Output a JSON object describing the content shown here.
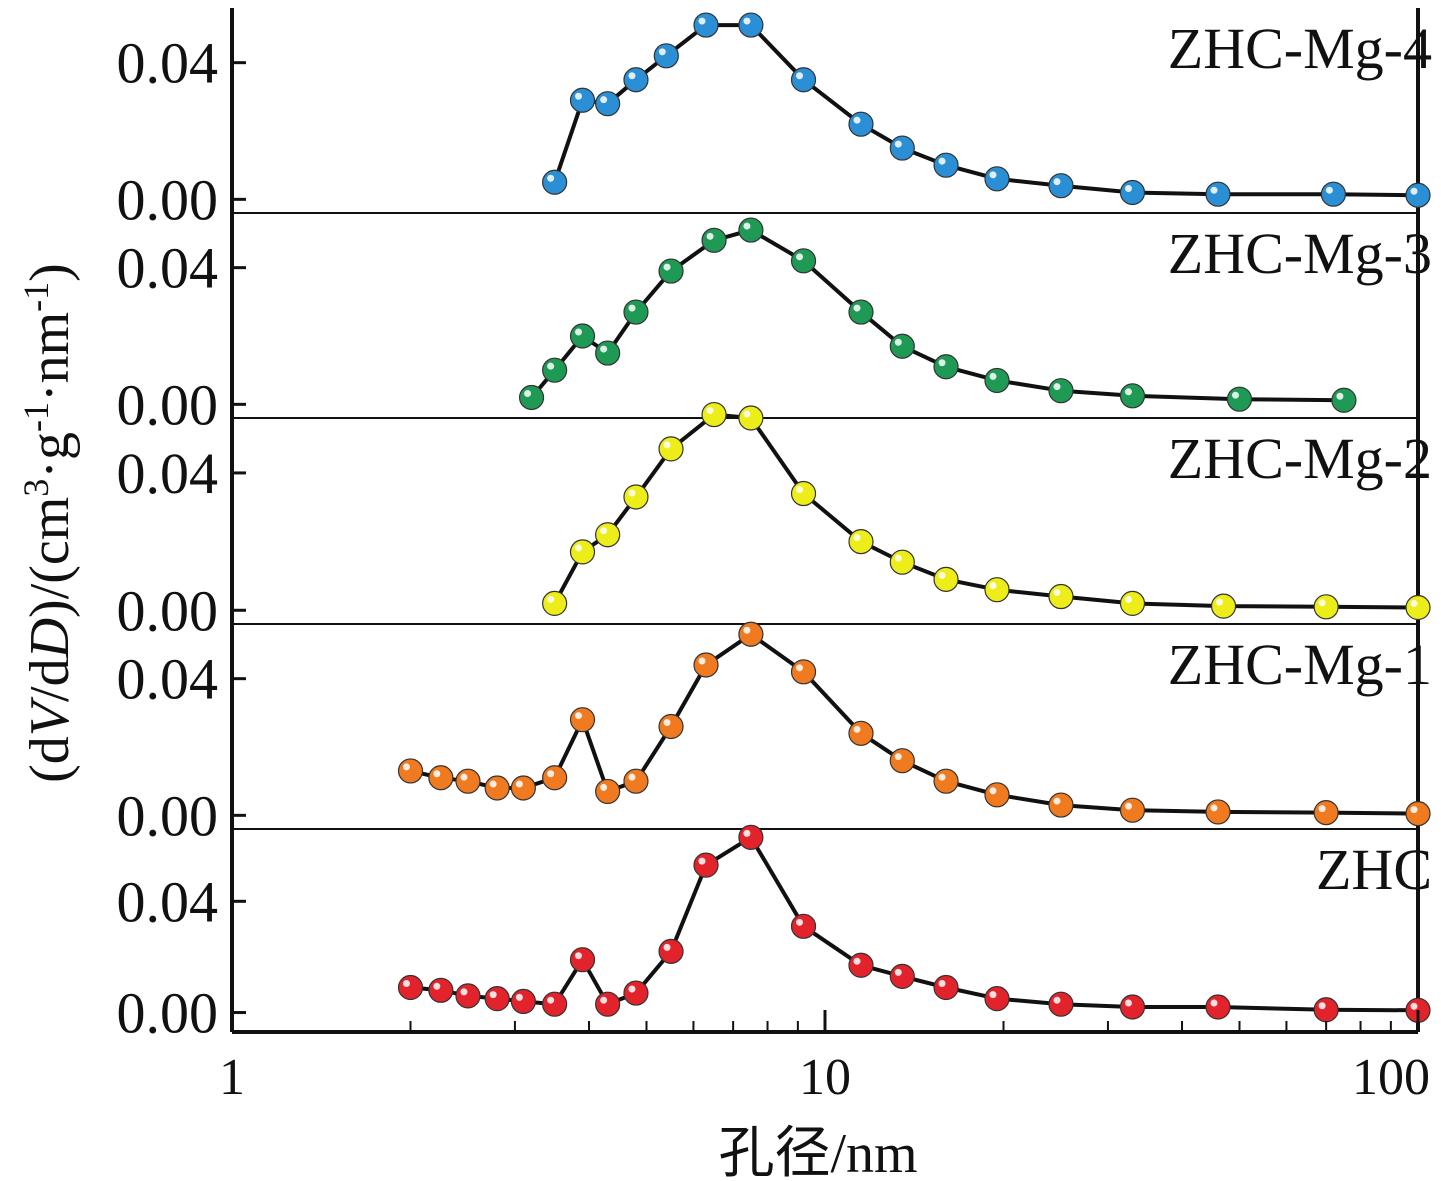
{
  "chart_data": {
    "type": "line",
    "xlabel": "孔径/nm",
    "ylabel_parts": [
      "(d",
      "V",
      "/d",
      "D",
      ")/(cm",
      "3",
      "·g",
      "-1",
      "·nm",
      "-1",
      ")"
    ],
    "x_scale": "log",
    "xlim": [
      1,
      100
    ],
    "x_ticks": [
      "1",
      "10",
      "100"
    ],
    "y_tick_labels": [
      "0.00",
      "0.04"
    ],
    "panel_ylim": [
      -0.004,
      0.056
    ],
    "bottom_panel_ylim": [
      -0.007,
      0.066
    ],
    "series": [
      {
        "name": "ZHC-Mg-4",
        "color": "#2b8fd6",
        "x": [
          3.5,
          3.9,
          4.3,
          4.8,
          5.4,
          6.3,
          7.5,
          9.2,
          11.5,
          13.5,
          16.0,
          19.5,
          25.0,
          33.0,
          46.0,
          72.0,
          100.0
        ],
        "y": [
          0.005,
          0.029,
          0.028,
          0.035,
          0.042,
          0.051,
          0.051,
          0.035,
          0.022,
          0.015,
          0.01,
          0.006,
          0.004,
          0.002,
          0.0015,
          0.0015,
          0.0012
        ]
      },
      {
        "name": "ZHC-Mg-3",
        "color": "#1f9a55",
        "x": [
          3.2,
          3.5,
          3.9,
          4.3,
          4.8,
          5.5,
          6.5,
          7.5,
          9.2,
          11.5,
          13.5,
          16.0,
          19.5,
          25.0,
          33.0,
          50.0,
          75.0
        ],
        "y": [
          0.002,
          0.01,
          0.02,
          0.015,
          0.027,
          0.039,
          0.048,
          0.051,
          0.042,
          0.027,
          0.017,
          0.011,
          0.007,
          0.004,
          0.0025,
          0.0015,
          0.0012
        ]
      },
      {
        "name": "ZHC-Mg-2",
        "color": "#eded1a",
        "x": [
          3.5,
          3.9,
          4.3,
          4.8,
          5.5,
          6.5,
          7.5,
          9.2,
          11.5,
          13.5,
          16.0,
          19.5,
          25.0,
          33.0,
          47.0,
          70.0,
          100.0
        ],
        "y": [
          0.002,
          0.017,
          0.022,
          0.033,
          0.047,
          0.057,
          0.056,
          0.034,
          0.02,
          0.014,
          0.009,
          0.006,
          0.004,
          0.002,
          0.0012,
          0.001,
          0.0008
        ]
      },
      {
        "name": "ZHC-Mg-1",
        "color": "#f07a20",
        "x": [
          2.0,
          2.25,
          2.5,
          2.8,
          3.1,
          3.5,
          3.9,
          4.3,
          4.8,
          5.5,
          6.3,
          7.5,
          9.2,
          11.5,
          13.5,
          16.0,
          19.5,
          25.0,
          33.0,
          46.0,
          70.0,
          100.0
        ],
        "y": [
          0.013,
          0.011,
          0.01,
          0.008,
          0.008,
          0.011,
          0.028,
          0.007,
          0.01,
          0.026,
          0.044,
          0.053,
          0.042,
          0.024,
          0.016,
          0.01,
          0.006,
          0.003,
          0.0015,
          0.001,
          0.0008,
          0.0005
        ]
      },
      {
        "name": "ZHC",
        "color": "#e3232b",
        "x": [
          2.0,
          2.25,
          2.5,
          2.8,
          3.1,
          3.5,
          3.9,
          4.3,
          4.8,
          5.5,
          6.3,
          7.5,
          9.2,
          11.5,
          13.5,
          16.0,
          19.5,
          25.0,
          33.0,
          46.0,
          70.0,
          100.0
        ],
        "y": [
          0.009,
          0.008,
          0.006,
          0.005,
          0.004,
          0.003,
          0.019,
          0.003,
          0.007,
          0.022,
          0.053,
          0.063,
          0.031,
          0.017,
          0.013,
          0.009,
          0.005,
          0.003,
          0.002,
          0.002,
          0.001,
          0.0008
        ]
      }
    ],
    "grid": false,
    "legend": "series names printed at top-right of each stacked panel"
  }
}
